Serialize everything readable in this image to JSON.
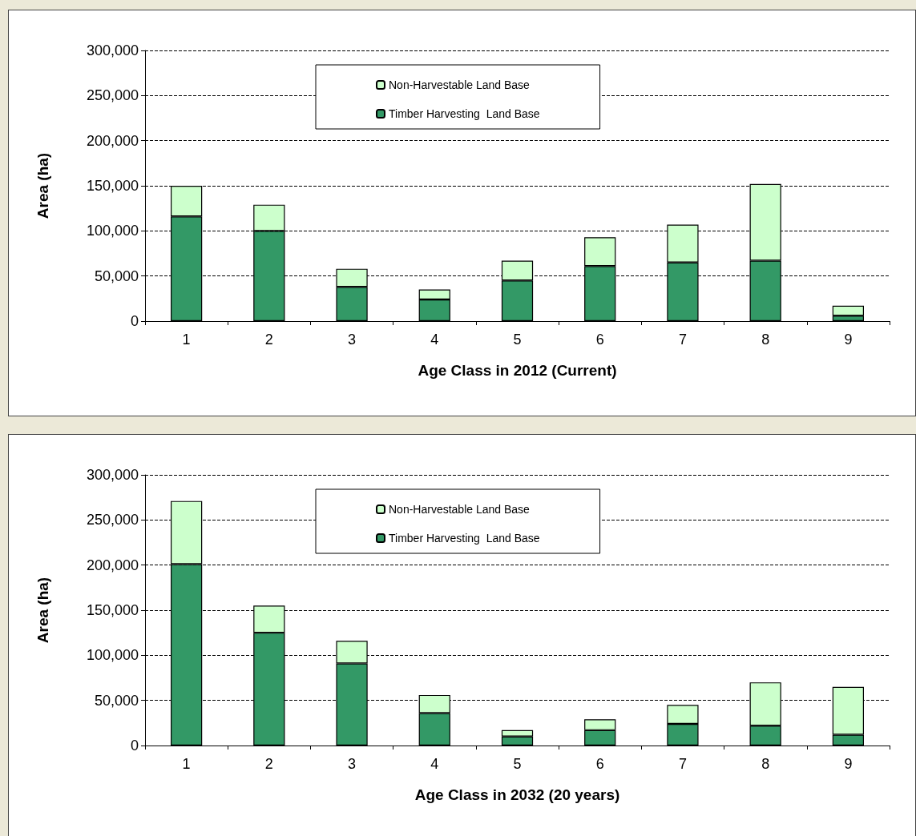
{
  "chart_data": [
    {
      "type": "bar",
      "xlabel": "Age Class in 2012 (Current)",
      "ylabel": "Area (ha)",
      "categories": [
        "1",
        "2",
        "3",
        "4",
        "5",
        "6",
        "7",
        "8",
        "9"
      ],
      "stacked": true,
      "series": [
        {
          "name": "Timber Harvesting  Land Base",
          "color": "#339966",
          "values": [
            116000,
            100000,
            38000,
            24000,
            45000,
            61000,
            65000,
            67000,
            6000
          ]
        },
        {
          "name": "Non-Harvestable Land Base",
          "color": "#ccffcc",
          "values": [
            34000,
            29000,
            20000,
            11000,
            22000,
            32000,
            42000,
            85000,
            11000
          ]
        }
      ],
      "ylim": [
        0,
        300000
      ],
      "yticks": [
        0,
        {
          "value": 50000,
          "label": "50,000"
        },
        {
          "value": 100000,
          "label": "100,000"
        },
        {
          "value": 150000,
          "label": "150,000"
        },
        {
          "value": 200000,
          "label": "200,000"
        },
        {
          "value": 250000,
          "label": "250,000"
        },
        {
          "value": 300000,
          "label": "300,000"
        }
      ],
      "grid": "y",
      "legend": "top"
    },
    {
      "type": "bar",
      "xlabel": "Age Class in 2032 (20 years)",
      "ylabel": "Area (ha)",
      "categories": [
        "1",
        "2",
        "3",
        "4",
        "5",
        "6",
        "7",
        "8",
        "9"
      ],
      "stacked": true,
      "series": [
        {
          "name": "Timber Harvesting  Land Base",
          "color": "#339966",
          "values": [
            201000,
            125000,
            91000,
            36000,
            10000,
            17000,
            24000,
            22000,
            12000
          ]
        },
        {
          "name": "Non-Harvestable Land Base",
          "color": "#ccffcc",
          "values": [
            70000,
            30000,
            25000,
            20000,
            7000,
            12000,
            21000,
            48000,
            53000
          ]
        }
      ],
      "ylim": [
        0,
        300000
      ],
      "yticks": [
        0,
        {
          "value": 50000,
          "label": "50,000"
        },
        {
          "value": 100000,
          "label": "100,000"
        },
        {
          "value": 150000,
          "label": "150,000"
        },
        {
          "value": 200000,
          "label": "200,000"
        },
        {
          "value": 250000,
          "label": "250,000"
        },
        {
          "value": 300000,
          "label": "300,000"
        }
      ],
      "grid": "y",
      "legend": "top"
    }
  ]
}
